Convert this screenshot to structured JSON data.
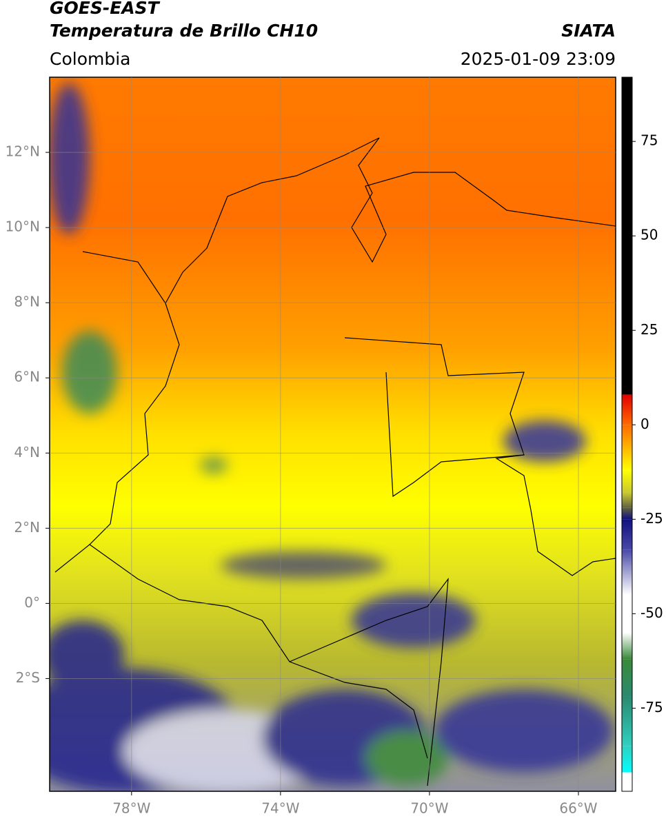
{
  "header": {
    "title": "GOES-EAST",
    "subtitle": "Temperatura de Brillo CH10",
    "source": "SIATA",
    "region": "Colombia",
    "datetime": "2025-01-09 23:09"
  },
  "map": {
    "xlim": [
      -80.2,
      -65
    ],
    "ylim": [
      -5,
      14
    ],
    "grid": true,
    "xticks": [
      {
        "value": -78,
        "label": "78°W"
      },
      {
        "value": -74,
        "label": "74°W"
      },
      {
        "value": -70,
        "label": "70°W"
      },
      {
        "value": -66,
        "label": "66°W"
      }
    ],
    "yticks": [
      {
        "value": 12,
        "label": "12°N"
      },
      {
        "value": 10,
        "label": "10°N"
      },
      {
        "value": 8,
        "label": "8°N"
      },
      {
        "value": 6,
        "label": "6°N"
      },
      {
        "value": 4,
        "label": "4°N"
      },
      {
        "value": 2,
        "label": "2°N"
      },
      {
        "value": 0,
        "label": "0°"
      },
      {
        "value": -2,
        "label": "2°S"
      }
    ]
  },
  "colorbar": {
    "lim": [
      -97,
      92
    ],
    "ticks": [
      75,
      50,
      25,
      0,
      -25,
      -50,
      -75
    ],
    "stops": [
      {
        "value": 92,
        "color": "#000000"
      },
      {
        "value": 8,
        "color": "#000000"
      },
      {
        "value": 8,
        "color": "#e00000"
      },
      {
        "value": 0,
        "color": "#ff6a00"
      },
      {
        "value": -12,
        "color": "#ffff00"
      },
      {
        "value": -18,
        "color": "#c8c830"
      },
      {
        "value": -22,
        "color": "#606040"
      },
      {
        "value": -25,
        "color": "#101080"
      },
      {
        "value": -33,
        "color": "#4848a8"
      },
      {
        "value": -45,
        "color": "#ffffff"
      },
      {
        "value": -55,
        "color": "#ffffff"
      },
      {
        "value": -62,
        "color": "#3a8a3a"
      },
      {
        "value": -72,
        "color": "#2a8a70"
      },
      {
        "value": -85,
        "color": "#30d0c0"
      },
      {
        "value": -92,
        "color": "#00ffff"
      },
      {
        "value": -92,
        "color": "#ffffff"
      },
      {
        "value": -97,
        "color": "#ffffff"
      }
    ]
  }
}
